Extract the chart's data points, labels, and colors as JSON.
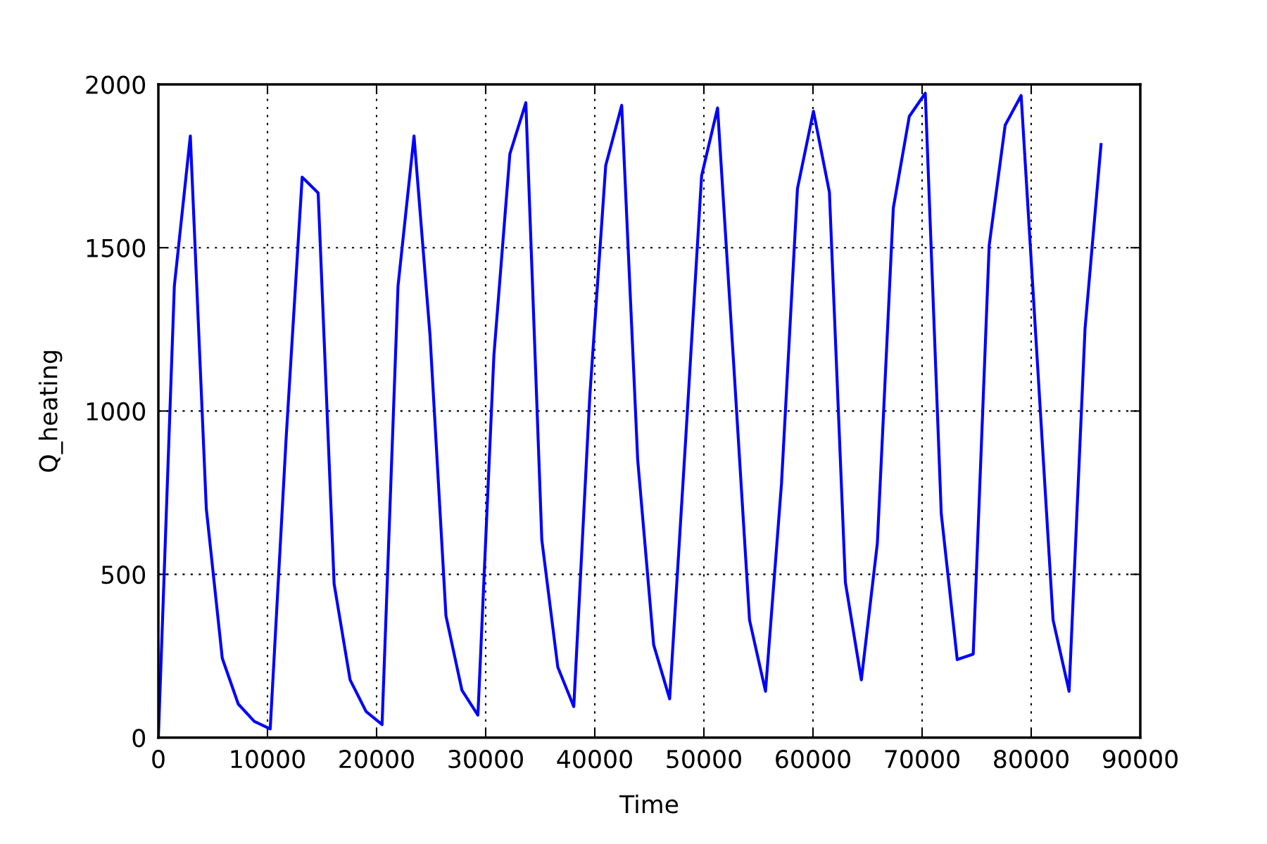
{
  "chart_data": {
    "type": "line",
    "xlabel": "Time",
    "ylabel": "Q_heating",
    "x": [
      0,
      1464,
      2929,
      4393,
      5858,
      7322,
      8786,
      10251,
      11715,
      13180,
      14644,
      16108,
      17573,
      19037,
      20502,
      21966,
      23431,
      24895,
      26359,
      27824,
      29288,
      30753,
      32217,
      33681,
      35146,
      36610,
      38075,
      39539,
      41003,
      42468,
      43932,
      45397,
      46861,
      48325,
      49790,
      51254,
      52719,
      54183,
      55647,
      57112,
      58576,
      60041,
      61505,
      62969,
      64434,
      65898,
      67363,
      68827,
      70292,
      71756,
      73220,
      74685,
      76149,
      77614,
      79078,
      80542,
      82007,
      83471,
      84936,
      86400
    ],
    "series": [
      {
        "color": "#0000ff",
        "values": [
          0,
          1383,
          1842,
          701,
          243,
          103,
          50,
          27,
          920,
          1716,
          1668,
          471,
          177,
          80,
          40,
          1383,
          1842,
          1233,
          373,
          145,
          69,
          1170,
          1787,
          1944,
          605,
          216,
          95,
          1044,
          1752,
          1936,
          851,
          284,
          119,
          910,
          1720,
          1928,
          1150,
          360,
          142,
          777,
          1681,
          1918,
          1670,
          475,
          177,
          595,
          1622,
          1902,
          1973,
          686,
          239,
          256,
          1507,
          1875,
          1966,
          1163,
          360,
          142,
          1253,
          1816
        ]
      }
    ],
    "xlim": [
      0,
      90000
    ],
    "xticks": [
      0,
      10000,
      20000,
      30000,
      40000,
      50000,
      60000,
      70000,
      80000,
      90000
    ],
    "ylim": [
      0,
      2000
    ],
    "yticks": [
      0,
      500,
      1000,
      1500,
      2000
    ],
    "grid": true,
    "line_style": "solid",
    "marker": "none"
  }
}
